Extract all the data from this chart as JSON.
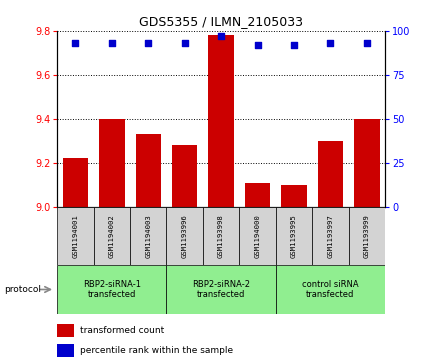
{
  "title": "GDS5355 / ILMN_2105033",
  "samples": [
    "GSM1194001",
    "GSM1194002",
    "GSM1194003",
    "GSM1193996",
    "GSM1193998",
    "GSM1194000",
    "GSM1193995",
    "GSM1193997",
    "GSM1193999"
  ],
  "bar_values": [
    9.22,
    9.4,
    9.33,
    9.28,
    9.78,
    9.11,
    9.1,
    9.3,
    9.4
  ],
  "percentile_values": [
    93,
    93,
    93,
    93,
    97,
    92,
    92,
    93,
    93
  ],
  "ylim_left": [
    9.0,
    9.8
  ],
  "ylim_right": [
    0,
    100
  ],
  "yticks_left": [
    9.0,
    9.2,
    9.4,
    9.6,
    9.8
  ],
  "yticks_right": [
    0,
    25,
    50,
    75,
    100
  ],
  "bar_color": "#cc0000",
  "dot_color": "#0000cc",
  "groups": [
    {
      "label": "RBP2-siRNA-1\ntransfected",
      "start": 0,
      "end": 3,
      "color": "#90ee90"
    },
    {
      "label": "RBP2-siRNA-2\ntransfected",
      "start": 3,
      "end": 6,
      "color": "#90ee90"
    },
    {
      "label": "control siRNA\ntransfected",
      "start": 6,
      "end": 9,
      "color": "#90ee90"
    }
  ],
  "legend_bar_label": "transformed count",
  "legend_dot_label": "percentile rank within the sample",
  "protocol_label": "protocol",
  "sample_box_color": "#d3d3d3",
  "bar_color_legend": "#cc0000",
  "dot_color_legend": "#0000cc"
}
